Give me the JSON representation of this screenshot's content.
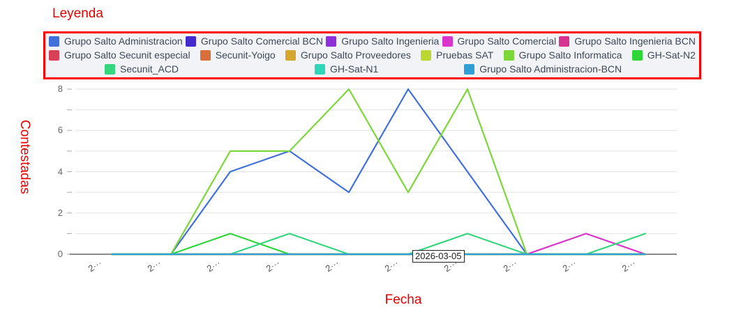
{
  "legend": {
    "title": "Leyenda",
    "border_color": "#ff0000",
    "background": "#f2f3f6",
    "rows": [
      [
        {
          "label": "Grupo Salto Administracion",
          "color": "#4070d8"
        },
        {
          "label": "Grupo Salto Comercial BCN",
          "color": "#4429cf"
        },
        {
          "label": "Grupo Salto Ingenieria",
          "color": "#8f2fd8"
        },
        {
          "label": "Grupo Salto Comercial",
          "color": "#d935cc"
        },
        {
          "label": "Grupo Salto Ingenieria BCN",
          "color": "#d93391"
        }
      ],
      [
        {
          "label": "Grupo Salto Secunit especial",
          "color": "#d93f56"
        },
        {
          "label": "Secunit-Yoigo",
          "color": "#d96f3a"
        },
        {
          "label": "Grupo Salto Proveedores",
          "color": "#d6a72e"
        },
        {
          "label": "Pruebas SAT",
          "color": "#bcd632"
        },
        {
          "label": "Grupo Salto Informatica",
          "color": "#7dd63a"
        },
        {
          "label": "GH-Sat-N2",
          "color": "#2fd63a"
        }
      ],
      [
        {
          "label": "Secunit_ACD",
          "color": "#35d67e"
        },
        {
          "label": "GH-Sat-N1",
          "color": "#2fd6b8"
        },
        {
          "label": "Grupo Salto Administracion-BCN",
          "color": "#2f9fd6"
        }
      ]
    ]
  },
  "chart_data": {
    "type": "line",
    "title": "",
    "xlabel": "Fecha",
    "ylabel": "Contestadas",
    "ylim": [
      0,
      8
    ],
    "y_ticks": [
      0,
      2,
      4,
      6,
      8
    ],
    "grid": true,
    "legend_position": "top",
    "x_count": 10,
    "x_tick_label_display": "2···",
    "x_tick_labels": [
      "2···",
      "2···",
      "2···",
      "2···",
      "2···",
      "2···",
      "2···",
      "2···",
      "2···",
      "2···"
    ],
    "tooltip": "2026-03-05",
    "series": [
      {
        "name": "Grupo Salto Administracion",
        "color": "#4070d8",
        "values": [
          0,
          0,
          4,
          5,
          3,
          8,
          4,
          0,
          0,
          0
        ]
      },
      {
        "name": "Grupo Salto Comercial BCN",
        "color": "#4429cf",
        "values": [
          0,
          0,
          0,
          0,
          0,
          0,
          0,
          0,
          0,
          0
        ]
      },
      {
        "name": "Grupo Salto Ingenieria",
        "color": "#8f2fd8",
        "values": [
          0,
          0,
          0,
          0,
          0,
          0,
          0,
          0,
          0,
          0
        ]
      },
      {
        "name": "Grupo Salto Comercial",
        "color": "#d935cc",
        "values": [
          0,
          0,
          0,
          0,
          0,
          0,
          0,
          0,
          1,
          0
        ]
      },
      {
        "name": "Grupo Salto Ingenieria BCN",
        "color": "#d93391",
        "values": [
          0,
          0,
          0,
          0,
          0,
          0,
          0,
          0,
          0,
          0
        ]
      },
      {
        "name": "Grupo Salto Secunit especial",
        "color": "#d93f56",
        "values": [
          0,
          0,
          0,
          0,
          0,
          0,
          0,
          0,
          0,
          0
        ]
      },
      {
        "name": "Secunit-Yoigo",
        "color": "#d96f3a",
        "values": [
          0,
          0,
          0,
          0,
          0,
          0,
          0,
          0,
          0,
          0
        ]
      },
      {
        "name": "Grupo Salto Proveedores",
        "color": "#d6a72e",
        "values": [
          0,
          0,
          0,
          0,
          0,
          0,
          0,
          0,
          0,
          0
        ]
      },
      {
        "name": "Pruebas SAT",
        "color": "#bcd632",
        "values": [
          0,
          0,
          0,
          0,
          0,
          0,
          0,
          0,
          0,
          0
        ]
      },
      {
        "name": "Grupo Salto Informatica",
        "color": "#7dd63a",
        "values": [
          0,
          0,
          5,
          5,
          8,
          3,
          8,
          0,
          0,
          0
        ]
      },
      {
        "name": "GH-Sat-N2",
        "color": "#2fd63a",
        "values": [
          0,
          0,
          1,
          0,
          0,
          0,
          0,
          0,
          0,
          0
        ]
      },
      {
        "name": "Secunit_ACD",
        "color": "#35d67e",
        "values": [
          0,
          0,
          0,
          1,
          0,
          0,
          1,
          0,
          0,
          1
        ]
      },
      {
        "name": "GH-Sat-N1",
        "color": "#2fd6b8",
        "values": [
          0,
          0,
          0,
          0,
          0,
          0,
          0,
          0,
          0,
          0
        ]
      },
      {
        "name": "Grupo Salto Administracion-BCN",
        "color": "#2f9fd6",
        "values": [
          0,
          0,
          0,
          0,
          0,
          0,
          0,
          0,
          0,
          0
        ]
      }
    ]
  }
}
